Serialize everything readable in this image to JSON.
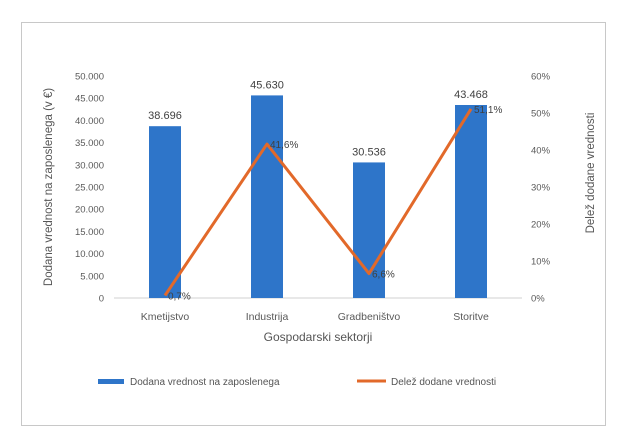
{
  "chart_data": {
    "type": "bar",
    "categories": [
      "Kmetijstvo",
      "Industrija",
      "Gradbeništvo",
      "Storitve"
    ],
    "series": [
      {
        "name": "Dodana vrednost na zaposlenega",
        "kind": "bar",
        "axis": "left",
        "color": "#2e75c9",
        "values": [
          38696,
          45630,
          30536,
          43468
        ],
        "labels": [
          "38.696",
          "45.630",
          "30.536",
          "43.468"
        ]
      },
      {
        "name": "Delež dodane vrednosti",
        "kind": "line",
        "axis": "right",
        "color": "#e2692a",
        "values": [
          0.7,
          41.6,
          6.6,
          51.1
        ],
        "labels": [
          "0,7%",
          "41,6%",
          "6,6%",
          "51,1%"
        ]
      }
    ],
    "xlabel": "Gospodarski sektorji",
    "ylabel": "Dodana vrednost na zaposlenega (v €)",
    "y2label": "Delež dodane vrednosti",
    "ylim": [
      0,
      50000
    ],
    "y2lim": [
      0,
      60
    ],
    "yticks": [
      "0",
      "5.000",
      "10.000",
      "15.000",
      "20.000",
      "25.000",
      "30.000",
      "35.000",
      "40.000",
      "45.000",
      "50.000"
    ],
    "y2ticks": [
      "0%",
      "10%",
      "20%",
      "30%",
      "40%",
      "50%",
      "60%"
    ],
    "grid": false,
    "legend": "bottom"
  }
}
